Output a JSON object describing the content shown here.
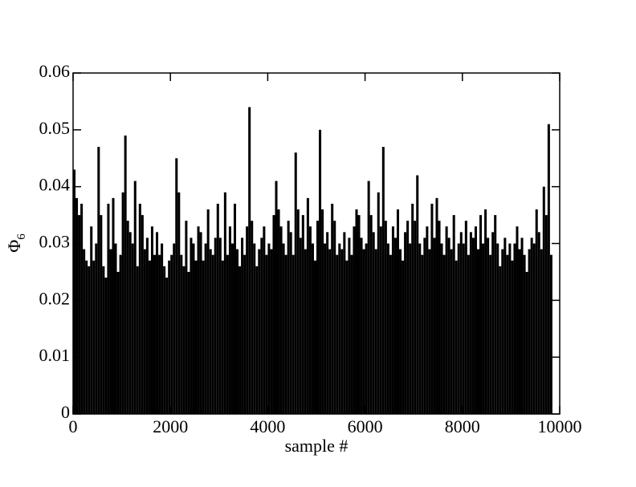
{
  "chart_data": {
    "type": "bar",
    "xlabel": "sample #",
    "ylabel": {
      "text": "Φ",
      "sub": "6"
    },
    "color": "#000000",
    "bin_width": 50,
    "x": [
      0,
      50,
      100,
      150,
      200,
      250,
      300,
      350,
      400,
      450,
      500,
      550,
      600,
      650,
      700,
      750,
      800,
      850,
      900,
      950,
      1000,
      1050,
      1100,
      1150,
      1200,
      1250,
      1300,
      1350,
      1400,
      1450,
      1500,
      1550,
      1600,
      1650,
      1700,
      1750,
      1800,
      1850,
      1900,
      1950,
      2000,
      2050,
      2100,
      2150,
      2200,
      2250,
      2300,
      2350,
      2400,
      2450,
      2500,
      2550,
      2600,
      2650,
      2700,
      2750,
      2800,
      2850,
      2900,
      2950,
      3000,
      3050,
      3100,
      3150,
      3200,
      3250,
      3300,
      3350,
      3400,
      3450,
      3500,
      3550,
      3600,
      3650,
      3700,
      3750,
      3800,
      3850,
      3900,
      3950,
      4000,
      4050,
      4100,
      4150,
      4200,
      4250,
      4300,
      4350,
      4400,
      4450,
      4500,
      4550,
      4600,
      4650,
      4700,
      4750,
      4800,
      4850,
      4900,
      4950,
      5000,
      5050,
      5100,
      5150,
      5200,
      5250,
      5300,
      5350,
      5400,
      5450,
      5500,
      5550,
      5600,
      5650,
      5700,
      5750,
      5800,
      5850,
      5900,
      5950,
      6000,
      6050,
      6100,
      6150,
      6200,
      6250,
      6300,
      6350,
      6400,
      6450,
      6500,
      6550,
      6600,
      6650,
      6700,
      6750,
      6800,
      6850,
      6900,
      6950,
      7000,
      7050,
      7100,
      7150,
      7200,
      7250,
      7300,
      7350,
      7400,
      7450,
      7500,
      7550,
      7600,
      7650,
      7700,
      7750,
      7800,
      7850,
      7900,
      7950,
      8000,
      8050,
      8100,
      8150,
      8200,
      8250,
      8300,
      8350,
      8400,
      8450,
      8500,
      8550,
      8600,
      8650,
      8700,
      8750,
      8800,
      8850,
      8900,
      8950,
      9000,
      9050,
      9100,
      9150,
      9200,
      9250,
      9300,
      9350,
      9400,
      9450,
      9500,
      9550,
      9600,
      9650,
      9700,
      9750,
      9800
    ],
    "values": [
      0.043,
      0.038,
      0.035,
      0.037,
      0.029,
      0.027,
      0.026,
      0.033,
      0.027,
      0.03,
      0.047,
      0.035,
      0.026,
      0.024,
      0.037,
      0.029,
      0.038,
      0.03,
      0.025,
      0.028,
      0.039,
      0.049,
      0.034,
      0.032,
      0.03,
      0.041,
      0.026,
      0.037,
      0.035,
      0.029,
      0.031,
      0.027,
      0.033,
      0.028,
      0.032,
      0.028,
      0.03,
      0.026,
      0.024,
      0.027,
      0.028,
      0.03,
      0.045,
      0.039,
      0.028,
      0.026,
      0.034,
      0.025,
      0.031,
      0.03,
      0.027,
      0.033,
      0.032,
      0.027,
      0.03,
      0.036,
      0.029,
      0.028,
      0.031,
      0.037,
      0.031,
      0.027,
      0.039,
      0.028,
      0.033,
      0.03,
      0.037,
      0.029,
      0.026,
      0.031,
      0.028,
      0.033,
      0.054,
      0.034,
      0.03,
      0.026,
      0.029,
      0.031,
      0.033,
      0.028,
      0.03,
      0.029,
      0.035,
      0.041,
      0.036,
      0.033,
      0.03,
      0.028,
      0.034,
      0.032,
      0.028,
      0.046,
      0.036,
      0.031,
      0.035,
      0.029,
      0.038,
      0.033,
      0.03,
      0.027,
      0.034,
      0.05,
      0.036,
      0.03,
      0.032,
      0.029,
      0.037,
      0.034,
      0.028,
      0.03,
      0.029,
      0.032,
      0.027,
      0.031,
      0.028,
      0.033,
      0.036,
      0.035,
      0.031,
      0.029,
      0.03,
      0.041,
      0.035,
      0.032,
      0.029,
      0.039,
      0.033,
      0.047,
      0.034,
      0.03,
      0.028,
      0.033,
      0.031,
      0.036,
      0.029,
      0.027,
      0.032,
      0.034,
      0.03,
      0.037,
      0.034,
      0.042,
      0.03,
      0.028,
      0.031,
      0.033,
      0.029,
      0.037,
      0.031,
      0.038,
      0.034,
      0.03,
      0.028,
      0.033,
      0.031,
      0.029,
      0.035,
      0.027,
      0.03,
      0.032,
      0.03,
      0.034,
      0.028,
      0.032,
      0.031,
      0.033,
      0.029,
      0.035,
      0.03,
      0.036,
      0.031,
      0.028,
      0.032,
      0.035,
      0.03,
      0.026,
      0.029,
      0.031,
      0.028,
      0.03,
      0.027,
      0.03,
      0.033,
      0.029,
      0.031,
      0.028,
      0.025,
      0.029,
      0.031,
      0.03,
      0.036,
      0.032,
      0.029,
      0.04,
      0.035,
      0.051,
      0.028
    ],
    "xlim": [
      0,
      10000
    ],
    "ylim": [
      0,
      0.06
    ],
    "xticks": [
      0,
      2000,
      4000,
      6000,
      8000,
      10000
    ],
    "yticks": [
      0,
      0.01,
      0.02,
      0.03,
      0.04,
      0.05,
      0.06
    ]
  }
}
